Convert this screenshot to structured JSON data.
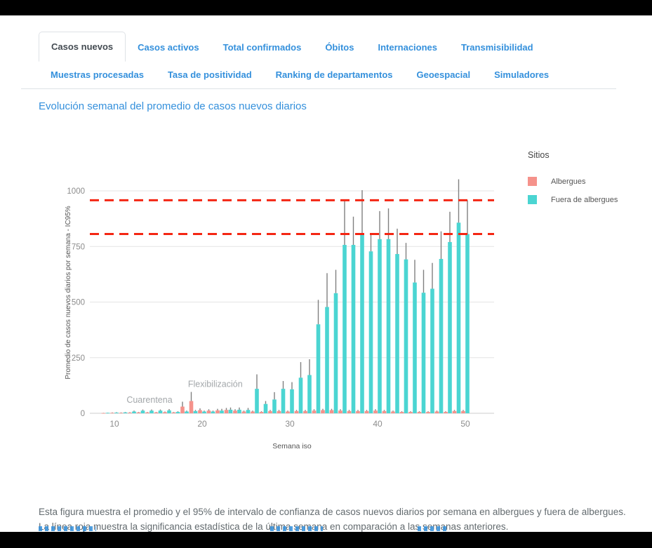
{
  "tabs": {
    "row1": [
      {
        "label": "Casos nuevos",
        "active": true
      },
      {
        "label": "Casos activos",
        "active": false
      },
      {
        "label": "Total confirmados",
        "active": false
      },
      {
        "label": "Óbitos",
        "active": false
      },
      {
        "label": "Internaciones",
        "active": false
      },
      {
        "label": "Transmisibilidad",
        "active": false
      }
    ],
    "row2": [
      {
        "label": "Muestras procesadas",
        "active": false
      },
      {
        "label": "Tasa de positividad",
        "active": false
      },
      {
        "label": "Ranking de departamentos",
        "active": false
      },
      {
        "label": "Geoespacial",
        "active": false
      },
      {
        "label": "Simuladores",
        "active": false
      }
    ]
  },
  "page_title": "Evolución semanal del promedio de casos nuevos diarios",
  "chart_data": {
    "type": "bar",
    "title": "Evolución semanal del promedio de casos nuevos diarios",
    "xlabel": "Semana iso",
    "ylabel": "Promedio de casos nuevos diarios por semana - IC95%",
    "legend_title": "Sitios",
    "legend_position": "right",
    "grid": true,
    "xlim": [
      7.5,
      51.5
    ],
    "ylim": [
      0,
      1080
    ],
    "xticks": [
      10,
      20,
      30,
      40,
      50
    ],
    "yticks": [
      0,
      250,
      500,
      750,
      1000
    ],
    "weeks": [
      9,
      10,
      11,
      12,
      13,
      14,
      15,
      16,
      17,
      18,
      19,
      20,
      21,
      22,
      23,
      24,
      25,
      26,
      27,
      28,
      29,
      30,
      31,
      32,
      33,
      34,
      35,
      36,
      37,
      38,
      39,
      40,
      41,
      42,
      43,
      44,
      45,
      46,
      47,
      48,
      49,
      50
    ],
    "series": [
      {
        "name": "Albergues",
        "color": "#F5928B",
        "values": [
          1,
          2,
          2,
          3,
          4,
          4,
          4,
          5,
          4,
          30,
          55,
          14,
          12,
          13,
          15,
          12,
          8,
          8,
          6,
          10,
          10,
          8,
          10,
          10,
          12,
          14,
          14,
          12,
          10,
          10,
          10,
          12,
          10,
          8,
          6,
          6,
          6,
          6,
          8,
          6,
          10,
          10
        ],
        "ci_upper": [
          2,
          4,
          4,
          5,
          6,
          6,
          6,
          8,
          6,
          52,
          96,
          22,
          18,
          20,
          24,
          18,
          12,
          12,
          9,
          15,
          15,
          12,
          15,
          15,
          18,
          20,
          20,
          18,
          15,
          15,
          15,
          18,
          15,
          12,
          9,
          9,
          9,
          9,
          12,
          9,
          15,
          15
        ]
      },
      {
        "name": "Fuera de albergues",
        "color": "#4BD5D2",
        "values": [
          2,
          3,
          4,
          8,
          12,
          12,
          12,
          13,
          6,
          8,
          10,
          8,
          8,
          12,
          16,
          16,
          15,
          110,
          42,
          62,
          110,
          108,
          160,
          172,
          400,
          478,
          540,
          757,
          757,
          807,
          728,
          783,
          783,
          716,
          692,
          588,
          542,
          560,
          694,
          770,
          857,
          806
        ],
        "ci_upper": [
          3,
          5,
          6,
          12,
          17,
          17,
          17,
          19,
          9,
          12,
          15,
          12,
          12,
          20,
          26,
          26,
          24,
          175,
          55,
          95,
          145,
          140,
          230,
          243,
          510,
          630,
          645,
          955,
          884,
          1003,
          806,
          909,
          921,
          830,
          766,
          690,
          645,
          676,
          818,
          906,
          1052,
          958
        ]
      }
    ],
    "reference_lines": {
      "color": "#F42613",
      "style": "dashed",
      "values": [
        958,
        806
      ],
      "meaning": "IC95% de la última semana"
    },
    "annotations": [
      {
        "text": "Cuarentena",
        "week": 14,
        "value": 48
      },
      {
        "text": "Flexibilización",
        "week": 21.5,
        "value": 118
      }
    ]
  },
  "footer": {
    "description": "Esta figura muestra el promedio y el 95% de intervalo de confianza de casos nuevos diarios por semana en albergues y fuera de albergues. La línea roja muestra la significancia estadística de la última semana en comparación a las semanas anteriores."
  },
  "colors": {
    "accent_blue": "#3490dc",
    "active_tab_text": "#444b52",
    "grid": "#e4e4e4",
    "tick_text": "#8c8c8c",
    "axis_title_text": "#555555",
    "annotation_text": "#a3a7aa",
    "error_bar": "#808080",
    "footer_text": "#636b6f"
  }
}
